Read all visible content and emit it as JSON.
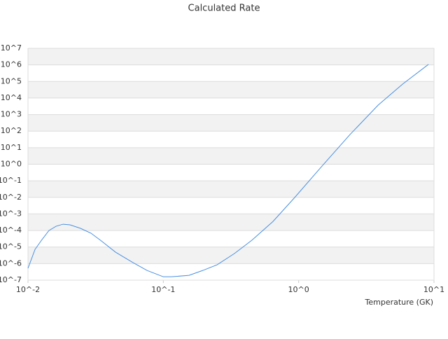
{
  "chart_data": {
    "type": "line",
    "title": "Calculated Rate",
    "x_label": "Temperature (GK)",
    "xlog": true,
    "ylog": true,
    "grid": true,
    "xlim": [
      0.01,
      10
    ],
    "ylim": [
      1e-07,
      10000000
    ],
    "xticks": [
      {
        "value": 0.01,
        "label": "10^-2"
      },
      {
        "value": 0.1,
        "label": "10^-1"
      },
      {
        "value": 1,
        "label": "10^0"
      },
      {
        "value": 10,
        "label": "10^1"
      }
    ],
    "yticks": [
      {
        "value": 1e-07,
        "label": "10^-7"
      },
      {
        "value": 1e-06,
        "label": "10^-6"
      },
      {
        "value": 1e-05,
        "label": "10^-5"
      },
      {
        "value": 0.0001,
        "label": "10^-4"
      },
      {
        "value": 0.001,
        "label": "10^-3"
      },
      {
        "value": 0.01,
        "label": "10^-2"
      },
      {
        "value": 0.1,
        "label": "10^-1"
      },
      {
        "value": 1,
        "label": "10^0"
      },
      {
        "value": 10,
        "label": "10^1"
      },
      {
        "value": 100,
        "label": "10^2"
      },
      {
        "value": 1000,
        "label": "10^3"
      },
      {
        "value": 10000,
        "label": "10^4"
      },
      {
        "value": 100000,
        "label": "10^5"
      },
      {
        "value": 1000000,
        "label": "10^6"
      },
      {
        "value": 10000000,
        "label": "10^7"
      }
    ],
    "series": [
      {
        "color": "#4a90e2",
        "x": [
          0.01,
          0.01127,
          0.01268,
          0.01429,
          0.01611,
          0.01816,
          0.02042,
          0.02443,
          0.02924,
          0.03491,
          0.04436,
          0.0597,
          0.07568,
          0.1,
          0.1148,
          0.1549,
          0.1963,
          0.2495,
          0.3357,
          0.4519,
          0.6457,
          0.9247,
          1.489,
          2.399,
          3.864,
          5.861,
          9.1
        ],
        "values": [
          5.2e-07,
          7.2e-06,
          2.8e-05,
          0.0001,
          0.00018,
          0.00024,
          0.00022,
          0.000135,
          6.8e-05,
          2.3e-05,
          4.9e-06,
          1.15e-06,
          3.9e-07,
          1.6e-07,
          1.6e-07,
          1.95e-07,
          3.9e-07,
          8.5e-07,
          4.1e-06,
          2.6e-05,
          0.00035,
          0.0089,
          0.78,
          63,
          3700,
          69000,
          1070000
        ]
      }
    ]
  }
}
